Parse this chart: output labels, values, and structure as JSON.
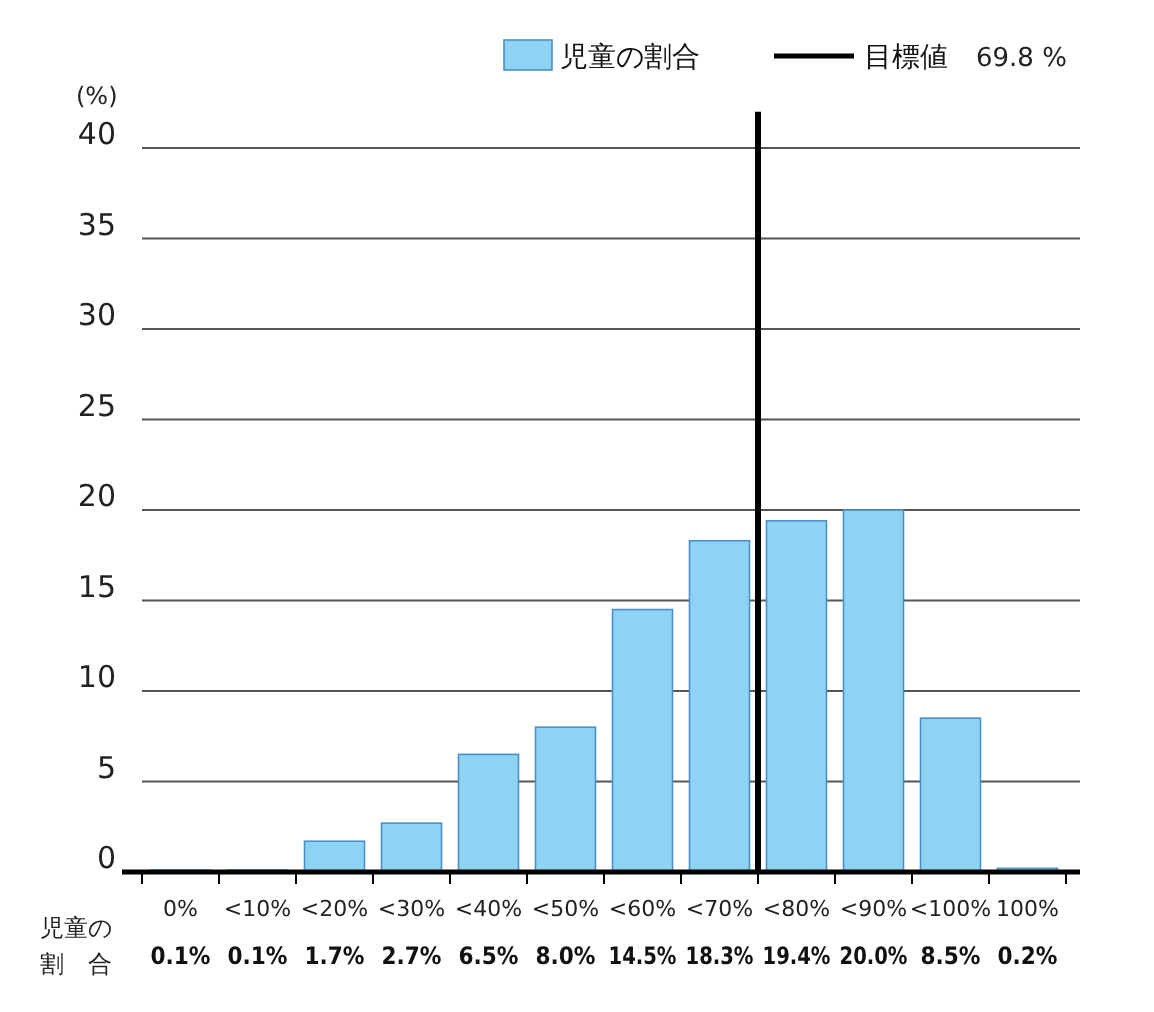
{
  "chart_data": {
    "type": "bar",
    "ylabel": "(%)",
    "categories": [
      "0%",
      "<10%",
      "<20%",
      "<30%",
      "<40%",
      "<50%",
      "<60%",
      "<70%",
      "<80%",
      "<90%",
      "<100%",
      "100%"
    ],
    "series": [
      {
        "name": "児童の割合",
        "color": "#8fd3f4",
        "values": [
          0.1,
          0.1,
          1.7,
          2.7,
          6.5,
          8.0,
          14.5,
          18.3,
          19.4,
          20.0,
          8.5,
          0.2
        ],
        "value_labels": [
          "0.1%",
          "0.1%",
          "1.7%",
          "2.7%",
          "6.5%",
          "8.0%",
          "14.5%",
          "18.3%",
          "19.4%",
          "20.0%",
          "8.5%",
          "0.2%"
        ]
      }
    ],
    "ylim": [
      0,
      42
    ],
    "yticks": [
      0,
      5,
      10,
      15,
      20,
      25,
      30,
      35,
      40
    ],
    "grid": "y",
    "legend": "top right",
    "ref_lines": [
      {
        "axis": "x",
        "value": "<70%",
        "label": "目標値",
        "color": "#000000"
      }
    ],
    "annotations": [
      "69.8 %",
      "児童の割合"
    ]
  }
}
